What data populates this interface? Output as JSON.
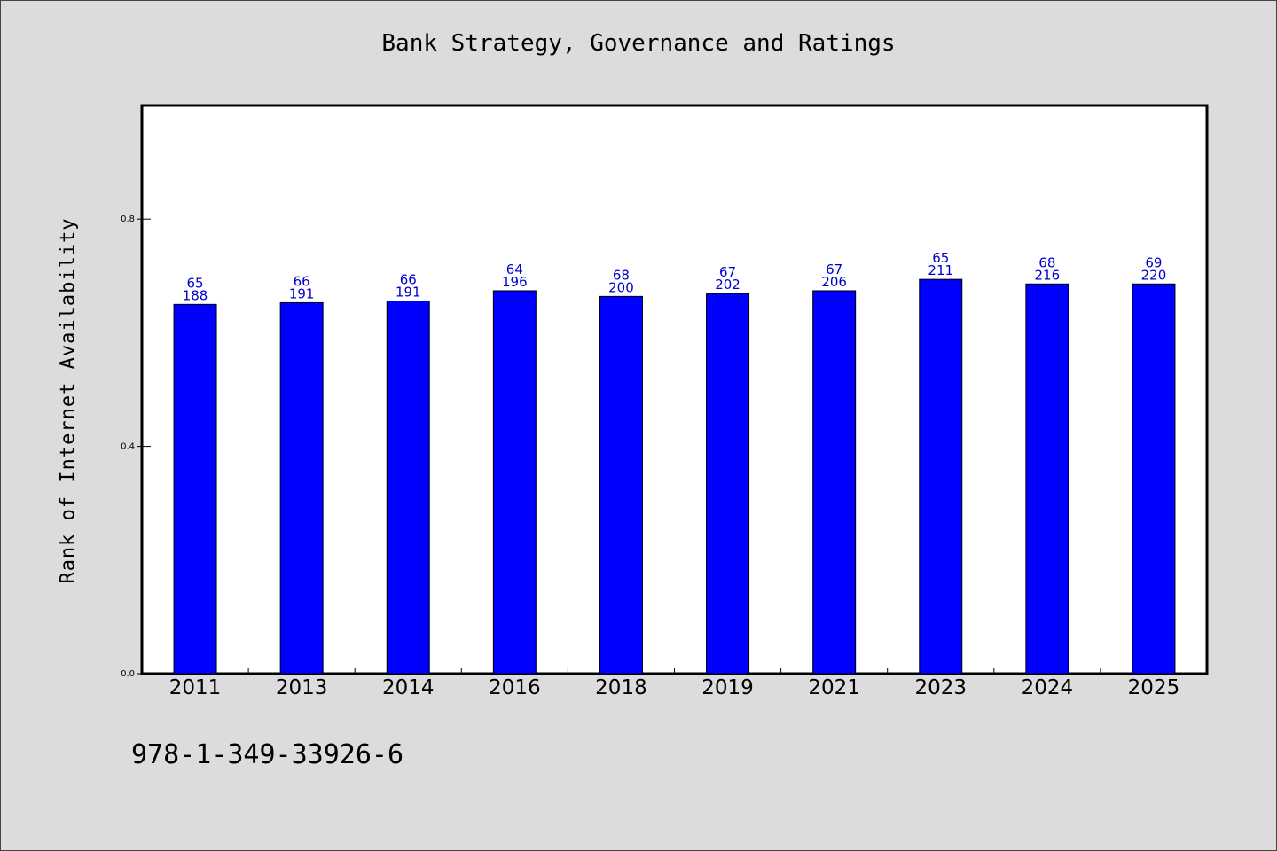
{
  "chart_data": {
    "type": "bar",
    "title": "Bank Strategy, Governance and Ratings",
    "xlabel": "",
    "ylabel": "Rank of Internet Availability",
    "categories": [
      "2011",
      "2013",
      "2014",
      "2016",
      "2018",
      "2019",
      "2021",
      "2023",
      "2024",
      "2025"
    ],
    "values": [
      0.65,
      0.653,
      0.656,
      0.674,
      0.664,
      0.669,
      0.674,
      0.694,
      0.686,
      0.686
    ],
    "labels_top": [
      "65",
      "66",
      "66",
      "64",
      "68",
      "67",
      "67",
      "65",
      "68",
      "69"
    ],
    "labels_bottom": [
      "188",
      "191",
      "191",
      "196",
      "200",
      "202",
      "206",
      "211",
      "216",
      "220"
    ],
    "ylim": [
      0,
      1.0
    ],
    "yticks": [
      0.0,
      0.4,
      0.8
    ],
    "ytick_labels": [
      "0.0",
      "0.4",
      "0.8"
    ],
    "grid": false,
    "colors": {
      "bar": "#0000ff",
      "data_label": "#0000cc",
      "background": "#dcdcdc"
    }
  },
  "footer": {
    "isbn": "978-1-349-33926-6"
  }
}
